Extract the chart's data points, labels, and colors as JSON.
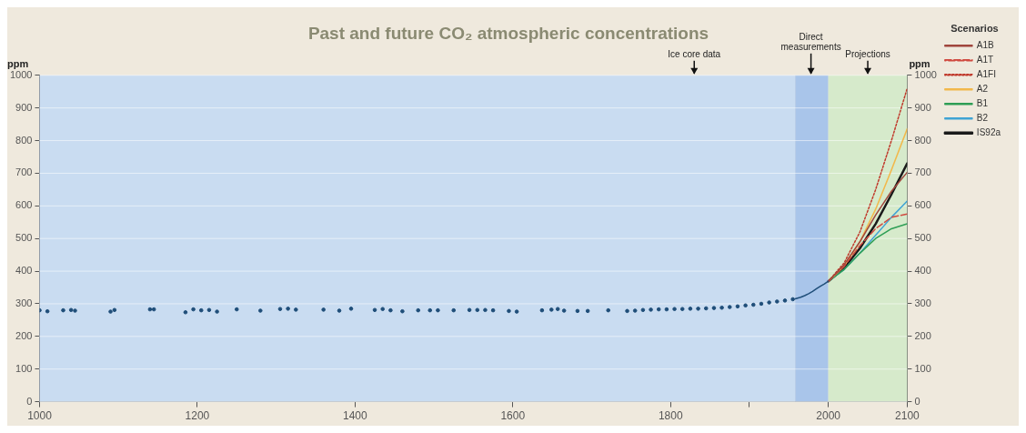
{
  "chart_data": {
    "type": "line",
    "title": "Past and future CO₂ atmospheric concentrations",
    "ylabel": "ppm",
    "y2label": "ppm",
    "legend_title": "Scenarios",
    "legend": "right",
    "grid": "y",
    "xlim": [
      1000,
      2100
    ],
    "xticks": [
      1000,
      1200,
      1400,
      1600,
      1800,
      {
        "value": 1900,
        "label": null
      },
      2000,
      2100
    ],
    "ylim": [
      0,
      1000
    ],
    "yticks": [
      0,
      100,
      200,
      300,
      400,
      500,
      600,
      700,
      800,
      900,
      1000
    ],
    "y2lim": [
      0,
      1000
    ],
    "y2ticks": [
      0,
      100,
      200,
      300,
      400,
      500,
      600,
      700,
      800,
      900,
      1000
    ],
    "bands": [
      {
        "axis": "x",
        "from": 1000,
        "to": 1958,
        "color": "#c9dcf1"
      },
      {
        "axis": "x",
        "from": 1958,
        "to": 2000,
        "color": "#a9c5ea"
      },
      {
        "axis": "x",
        "from": 2000,
        "to": 2100,
        "color": "#d6eacb"
      }
    ],
    "annotations": [
      {
        "text": "Ice core data",
        "x": 1830,
        "y": 1000
      },
      {
        "text": "Direct measurements",
        "x": 1978,
        "y": 1000
      },
      {
        "text": "Projections",
        "x": 2050,
        "y": 1000
      }
    ],
    "series": [
      {
        "type": "scatter",
        "marker": "circle",
        "color": "#1f4e79",
        "x": [
          1000,
          1010,
          1030,
          1040,
          1045,
          1090,
          1095,
          1140,
          1145,
          1185,
          1195,
          1205,
          1215,
          1225,
          1250,
          1280,
          1305,
          1315,
          1325,
          1360,
          1380,
          1395,
          1425,
          1435,
          1445,
          1460,
          1480,
          1495,
          1505,
          1525,
          1545,
          1555,
          1565,
          1575,
          1595,
          1605,
          1637,
          1649,
          1657,
          1665,
          1682,
          1695,
          1721,
          1745,
          1755,
          1765,
          1775,
          1785,
          1795,
          1805,
          1815,
          1825,
          1835,
          1845,
          1855,
          1865,
          1875,
          1885,
          1895,
          1905,
          1915,
          1925,
          1935,
          1945,
          1955
        ],
        "values": [
          280,
          277,
          280,
          281,
          279,
          276,
          281,
          283,
          283,
          274,
          283,
          280,
          281,
          276,
          283,
          279,
          284,
          285,
          282,
          282,
          279,
          285,
          281,
          284,
          280,
          277,
          280,
          280,
          280,
          280,
          281,
          281,
          281,
          280,
          278,
          276,
          280,
          282,
          284,
          279,
          278,
          278,
          280,
          278,
          279,
          281,
          282,
          283,
          283,
          284,
          284,
          285,
          285,
          286,
          287,
          288,
          290,
          292,
          295,
          297,
          300,
          304,
          307,
          310,
          314
        ]
      },
      {
        "type": "line",
        "marker": "none",
        "color": "#1f4e79",
        "x": [
          1958,
          1965,
          1970,
          1975,
          1980,
          1985,
          1990,
          1995,
          2000
        ],
        "values": [
          315,
          320,
          325,
          331,
          338,
          346,
          354,
          361,
          369
        ]
      },
      {
        "name": "A1B",
        "line_style": "solid",
        "color": "#a0453c",
        "x": [
          2000,
          2020,
          2040,
          2060,
          2080,
          2100
        ],
        "values": [
          369,
          420,
          490,
          572,
          645,
          703
        ]
      },
      {
        "name": "A1T",
        "line_style": "dashed",
        "color": "#d04a40",
        "x": [
          2000,
          2020,
          2040,
          2060,
          2080,
          2100
        ],
        "values": [
          369,
          415,
          478,
          530,
          565,
          575
        ]
      },
      {
        "name": "A1FI",
        "line_style": "dotted",
        "color": "#c0392b",
        "x": [
          2000,
          2020,
          2040,
          2060,
          2080,
          2100
        ],
        "values": [
          369,
          425,
          520,
          650,
          800,
          960
        ]
      },
      {
        "name": "A2",
        "line_style": "solid",
        "color": "#f2b84b",
        "x": [
          2000,
          2020,
          2040,
          2060,
          2080,
          2100
        ],
        "values": [
          369,
          415,
          490,
          590,
          710,
          836
        ]
      },
      {
        "name": "B1",
        "line_style": "solid",
        "color": "#2e9e55",
        "x": [
          2000,
          2020,
          2040,
          2060,
          2080,
          2100
        ],
        "values": [
          369,
          405,
          455,
          500,
          530,
          545
        ]
      },
      {
        "name": "B2",
        "line_style": "solid",
        "color": "#3fa3d4",
        "x": [
          2000,
          2020,
          2040,
          2060,
          2080,
          2100
        ],
        "values": [
          369,
          405,
          455,
          510,
          565,
          615
        ]
      },
      {
        "name": "IS92a",
        "line_style": "solid",
        "color": "#1a1a1a",
        "x": [
          2000,
          2020,
          2040,
          2060,
          2080,
          2100
        ],
        "values": [
          369,
          410,
          470,
          545,
          635,
          730
        ]
      }
    ]
  }
}
